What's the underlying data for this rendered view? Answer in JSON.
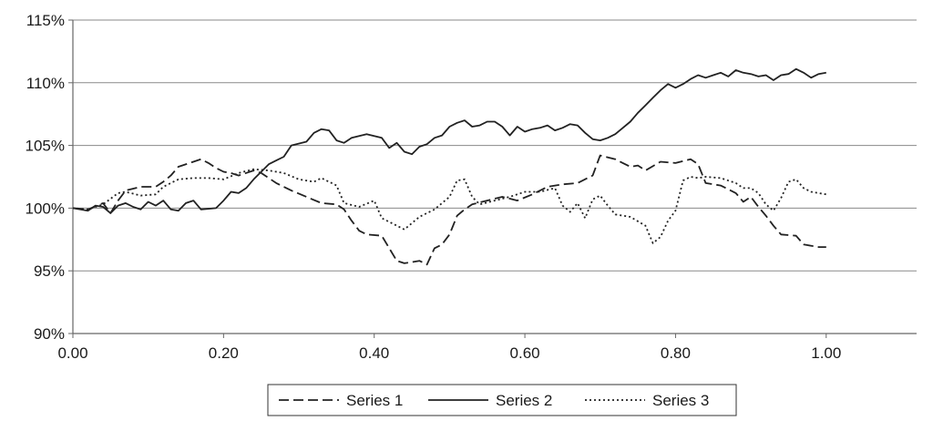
{
  "chart_data": {
    "type": "line",
    "title": "",
    "xlabel": "",
    "ylabel": "",
    "xlim": [
      0,
      1.12
    ],
    "ylim": [
      90,
      115
    ],
    "x_ticks": [
      0,
      0.2,
      0.4,
      0.6,
      0.8,
      1.0
    ],
    "x_tick_labels": [
      "0.00",
      "0.20",
      "0.40",
      "0.60",
      "0.80",
      "1.00"
    ],
    "y_ticks": [
      90,
      95,
      100,
      105,
      110,
      115
    ],
    "y_tick_labels": [
      "90%",
      "95%",
      "100%",
      "105%",
      "110%",
      "115%"
    ],
    "grid": "horizontal",
    "legend_position": "bottom",
    "series": [
      {
        "name": "Series 1",
        "style": "dashed",
        "color": "#222222",
        "points": [
          [
            0.0,
            100.0
          ],
          [
            0.02,
            99.9
          ],
          [
            0.04,
            100.4
          ],
          [
            0.05,
            99.6
          ],
          [
            0.06,
            100.6
          ],
          [
            0.07,
            101.4
          ],
          [
            0.09,
            101.7
          ],
          [
            0.11,
            101.7
          ],
          [
            0.12,
            102.1
          ],
          [
            0.13,
            102.6
          ],
          [
            0.14,
            103.3
          ],
          [
            0.16,
            103.7
          ],
          [
            0.17,
            103.9
          ],
          [
            0.18,
            103.6
          ],
          [
            0.19,
            103.2
          ],
          [
            0.2,
            102.9
          ],
          [
            0.21,
            102.8
          ],
          [
            0.22,
            102.6
          ],
          [
            0.24,
            103.0
          ],
          [
            0.25,
            102.8
          ],
          [
            0.27,
            102.0
          ],
          [
            0.29,
            101.4
          ],
          [
            0.31,
            100.9
          ],
          [
            0.33,
            100.4
          ],
          [
            0.35,
            100.3
          ],
          [
            0.36,
            99.9
          ],
          [
            0.37,
            99.0
          ],
          [
            0.38,
            98.2
          ],
          [
            0.39,
            97.9
          ],
          [
            0.41,
            97.8
          ],
          [
            0.42,
            96.8
          ],
          [
            0.43,
            95.8
          ],
          [
            0.44,
            95.6
          ],
          [
            0.45,
            95.7
          ],
          [
            0.46,
            95.8
          ],
          [
            0.47,
            95.5
          ],
          [
            0.48,
            96.8
          ],
          [
            0.49,
            97.1
          ],
          [
            0.5,
            97.9
          ],
          [
            0.51,
            99.4
          ],
          [
            0.52,
            99.9
          ],
          [
            0.53,
            100.3
          ],
          [
            0.55,
            100.6
          ],
          [
            0.57,
            100.9
          ],
          [
            0.59,
            100.6
          ],
          [
            0.61,
            101.1
          ],
          [
            0.63,
            101.7
          ],
          [
            0.65,
            101.9
          ],
          [
            0.67,
            102.0
          ],
          [
            0.69,
            102.6
          ],
          [
            0.7,
            104.2
          ],
          [
            0.72,
            103.9
          ],
          [
            0.73,
            103.6
          ],
          [
            0.74,
            103.3
          ],
          [
            0.75,
            103.4
          ],
          [
            0.76,
            103.0
          ],
          [
            0.78,
            103.7
          ],
          [
            0.8,
            103.6
          ],
          [
            0.82,
            103.9
          ],
          [
            0.83,
            103.5
          ],
          [
            0.84,
            102.0
          ],
          [
            0.86,
            101.8
          ],
          [
            0.88,
            101.2
          ],
          [
            0.89,
            100.5
          ],
          [
            0.9,
            100.9
          ],
          [
            0.91,
            100.1
          ],
          [
            0.92,
            99.4
          ],
          [
            0.93,
            98.6
          ],
          [
            0.94,
            97.9
          ],
          [
            0.96,
            97.8
          ],
          [
            0.97,
            97.1
          ],
          [
            0.99,
            96.9
          ],
          [
            1.0,
            96.9
          ]
        ]
      },
      {
        "name": "Series 2",
        "style": "solid",
        "color": "#222222",
        "points": [
          [
            0.0,
            100.0
          ],
          [
            0.02,
            99.8
          ],
          [
            0.03,
            100.2
          ],
          [
            0.04,
            100.1
          ],
          [
            0.05,
            99.6
          ],
          [
            0.06,
            100.2
          ],
          [
            0.07,
            100.4
          ],
          [
            0.08,
            100.1
          ],
          [
            0.09,
            99.9
          ],
          [
            0.1,
            100.5
          ],
          [
            0.11,
            100.2
          ],
          [
            0.12,
            100.6
          ],
          [
            0.13,
            99.9
          ],
          [
            0.14,
            99.8
          ],
          [
            0.15,
            100.4
          ],
          [
            0.16,
            100.6
          ],
          [
            0.17,
            99.9
          ],
          [
            0.19,
            100.0
          ],
          [
            0.2,
            100.6
          ],
          [
            0.21,
            101.3
          ],
          [
            0.22,
            101.2
          ],
          [
            0.23,
            101.6
          ],
          [
            0.24,
            102.3
          ],
          [
            0.25,
            102.9
          ],
          [
            0.26,
            103.5
          ],
          [
            0.27,
            103.8
          ],
          [
            0.28,
            104.1
          ],
          [
            0.29,
            105.0
          ],
          [
            0.31,
            105.3
          ],
          [
            0.32,
            106.0
          ],
          [
            0.33,
            106.3
          ],
          [
            0.34,
            106.2
          ],
          [
            0.35,
            105.4
          ],
          [
            0.36,
            105.2
          ],
          [
            0.37,
            105.6
          ],
          [
            0.39,
            105.9
          ],
          [
            0.41,
            105.6
          ],
          [
            0.42,
            104.8
          ],
          [
            0.43,
            105.2
          ],
          [
            0.44,
            104.5
          ],
          [
            0.45,
            104.3
          ],
          [
            0.46,
            104.9
          ],
          [
            0.47,
            105.1
          ],
          [
            0.48,
            105.6
          ],
          [
            0.49,
            105.8
          ],
          [
            0.5,
            106.5
          ],
          [
            0.51,
            106.8
          ],
          [
            0.52,
            107.0
          ],
          [
            0.53,
            106.5
          ],
          [
            0.54,
            106.6
          ],
          [
            0.55,
            106.9
          ],
          [
            0.56,
            106.9
          ],
          [
            0.57,
            106.5
          ],
          [
            0.58,
            105.8
          ],
          [
            0.59,
            106.5
          ],
          [
            0.6,
            106.1
          ],
          [
            0.61,
            106.3
          ],
          [
            0.62,
            106.4
          ],
          [
            0.63,
            106.6
          ],
          [
            0.64,
            106.2
          ],
          [
            0.65,
            106.4
          ],
          [
            0.66,
            106.7
          ],
          [
            0.67,
            106.6
          ],
          [
            0.68,
            106.0
          ],
          [
            0.69,
            105.5
          ],
          [
            0.7,
            105.4
          ],
          [
            0.71,
            105.6
          ],
          [
            0.72,
            105.9
          ],
          [
            0.73,
            106.4
          ],
          [
            0.74,
            106.9
          ],
          [
            0.75,
            107.6
          ],
          [
            0.76,
            108.2
          ],
          [
            0.77,
            108.8
          ],
          [
            0.78,
            109.4
          ],
          [
            0.79,
            109.9
          ],
          [
            0.8,
            109.6
          ],
          [
            0.81,
            109.9
          ],
          [
            0.82,
            110.3
          ],
          [
            0.83,
            110.6
          ],
          [
            0.84,
            110.4
          ],
          [
            0.85,
            110.6
          ],
          [
            0.86,
            110.8
          ],
          [
            0.87,
            110.5
          ],
          [
            0.88,
            111.0
          ],
          [
            0.89,
            110.8
          ],
          [
            0.9,
            110.7
          ],
          [
            0.91,
            110.5
          ],
          [
            0.92,
            110.6
          ],
          [
            0.93,
            110.2
          ],
          [
            0.94,
            110.6
          ],
          [
            0.95,
            110.7
          ],
          [
            0.96,
            111.1
          ],
          [
            0.97,
            110.8
          ],
          [
            0.98,
            110.4
          ],
          [
            0.99,
            110.7
          ],
          [
            1.0,
            110.8
          ]
        ]
      },
      {
        "name": "Series 3",
        "style": "dotted",
        "color": "#222222",
        "points": [
          [
            0.0,
            100.0
          ],
          [
            0.02,
            99.9
          ],
          [
            0.04,
            100.3
          ],
          [
            0.06,
            101.2
          ],
          [
            0.07,
            101.3
          ],
          [
            0.09,
            101.0
          ],
          [
            0.11,
            101.1
          ],
          [
            0.12,
            101.7
          ],
          [
            0.14,
            102.3
          ],
          [
            0.16,
            102.4
          ],
          [
            0.18,
            102.4
          ],
          [
            0.2,
            102.3
          ],
          [
            0.22,
            102.8
          ],
          [
            0.24,
            103.1
          ],
          [
            0.26,
            103.0
          ],
          [
            0.28,
            102.8
          ],
          [
            0.3,
            102.3
          ],
          [
            0.32,
            102.1
          ],
          [
            0.33,
            102.4
          ],
          [
            0.35,
            101.8
          ],
          [
            0.36,
            100.4
          ],
          [
            0.38,
            100.1
          ],
          [
            0.4,
            100.6
          ],
          [
            0.41,
            99.2
          ],
          [
            0.43,
            98.6
          ],
          [
            0.44,
            98.3
          ],
          [
            0.46,
            99.3
          ],
          [
            0.48,
            99.9
          ],
          [
            0.5,
            100.9
          ],
          [
            0.51,
            102.2
          ],
          [
            0.52,
            102.3
          ],
          [
            0.53,
            100.9
          ],
          [
            0.54,
            100.3
          ],
          [
            0.56,
            100.6
          ],
          [
            0.58,
            100.9
          ],
          [
            0.6,
            101.3
          ],
          [
            0.62,
            101.3
          ],
          [
            0.64,
            101.6
          ],
          [
            0.65,
            100.2
          ],
          [
            0.66,
            99.7
          ],
          [
            0.67,
            100.4
          ],
          [
            0.68,
            99.2
          ],
          [
            0.69,
            100.7
          ],
          [
            0.7,
            101.0
          ],
          [
            0.71,
            100.2
          ],
          [
            0.72,
            99.5
          ],
          [
            0.74,
            99.3
          ],
          [
            0.76,
            98.6
          ],
          [
            0.77,
            97.2
          ],
          [
            0.78,
            97.7
          ],
          [
            0.79,
            99.0
          ],
          [
            0.8,
            99.8
          ],
          [
            0.81,
            102.2
          ],
          [
            0.82,
            102.5
          ],
          [
            0.83,
            102.4
          ],
          [
            0.84,
            102.5
          ],
          [
            0.86,
            102.4
          ],
          [
            0.88,
            102.0
          ],
          [
            0.89,
            101.6
          ],
          [
            0.9,
            101.6
          ],
          [
            0.91,
            101.2
          ],
          [
            0.92,
            100.3
          ],
          [
            0.93,
            99.8
          ],
          [
            0.94,
            100.8
          ],
          [
            0.95,
            102.1
          ],
          [
            0.96,
            102.3
          ],
          [
            0.97,
            101.6
          ],
          [
            0.98,
            101.3
          ],
          [
            1.0,
            101.1
          ]
        ]
      }
    ]
  }
}
